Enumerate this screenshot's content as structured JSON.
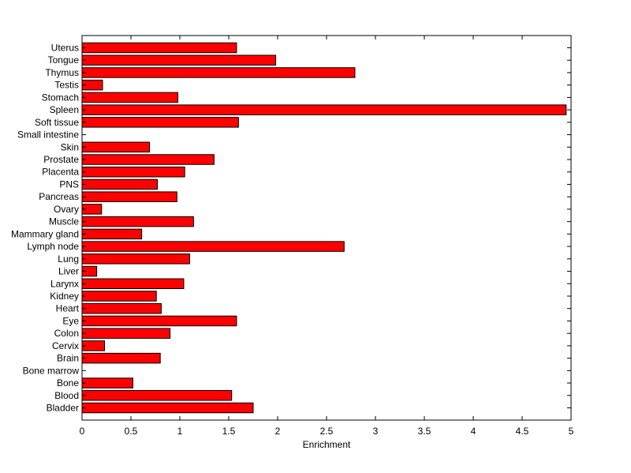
{
  "chart_data": {
    "type": "bar",
    "orientation": "horizontal",
    "categories": [
      "Bladder",
      "Blood",
      "Bone",
      "Bone marrow",
      "Brain",
      "Cervix",
      "Colon",
      "Eye",
      "Heart",
      "Kidney",
      "Larynx",
      "Liver",
      "Lung",
      "Lymph node",
      "Mammary gland",
      "Muscle",
      "Ovary",
      "Pancreas",
      "PNS",
      "Placenta",
      "Prostate",
      "Skin",
      "Small intestine",
      "Soft tissue",
      "Spleen",
      "Stomach",
      "Testis",
      "Thymus",
      "Tongue",
      "Uterus"
    ],
    "values": [
      1.75,
      1.53,
      0.52,
      0.0,
      0.8,
      0.23,
      0.9,
      1.58,
      0.81,
      0.76,
      1.04,
      0.15,
      1.1,
      2.68,
      0.61,
      1.14,
      0.2,
      0.97,
      0.77,
      1.05,
      1.35,
      0.69,
      0.0,
      1.6,
      4.95,
      0.98,
      0.21,
      2.79,
      1.98,
      1.58
    ],
    "xlabel": "Enrichment",
    "ylabel": "",
    "title": "",
    "xlim": [
      0,
      5
    ],
    "xticks": [
      "0",
      "0.5",
      "1",
      "1.5",
      "2",
      "2.5",
      "3",
      "3.5",
      "4",
      "4.5",
      "5"
    ],
    "grid": false,
    "bar_color": "#ff0000",
    "edge_color": "#000000"
  }
}
